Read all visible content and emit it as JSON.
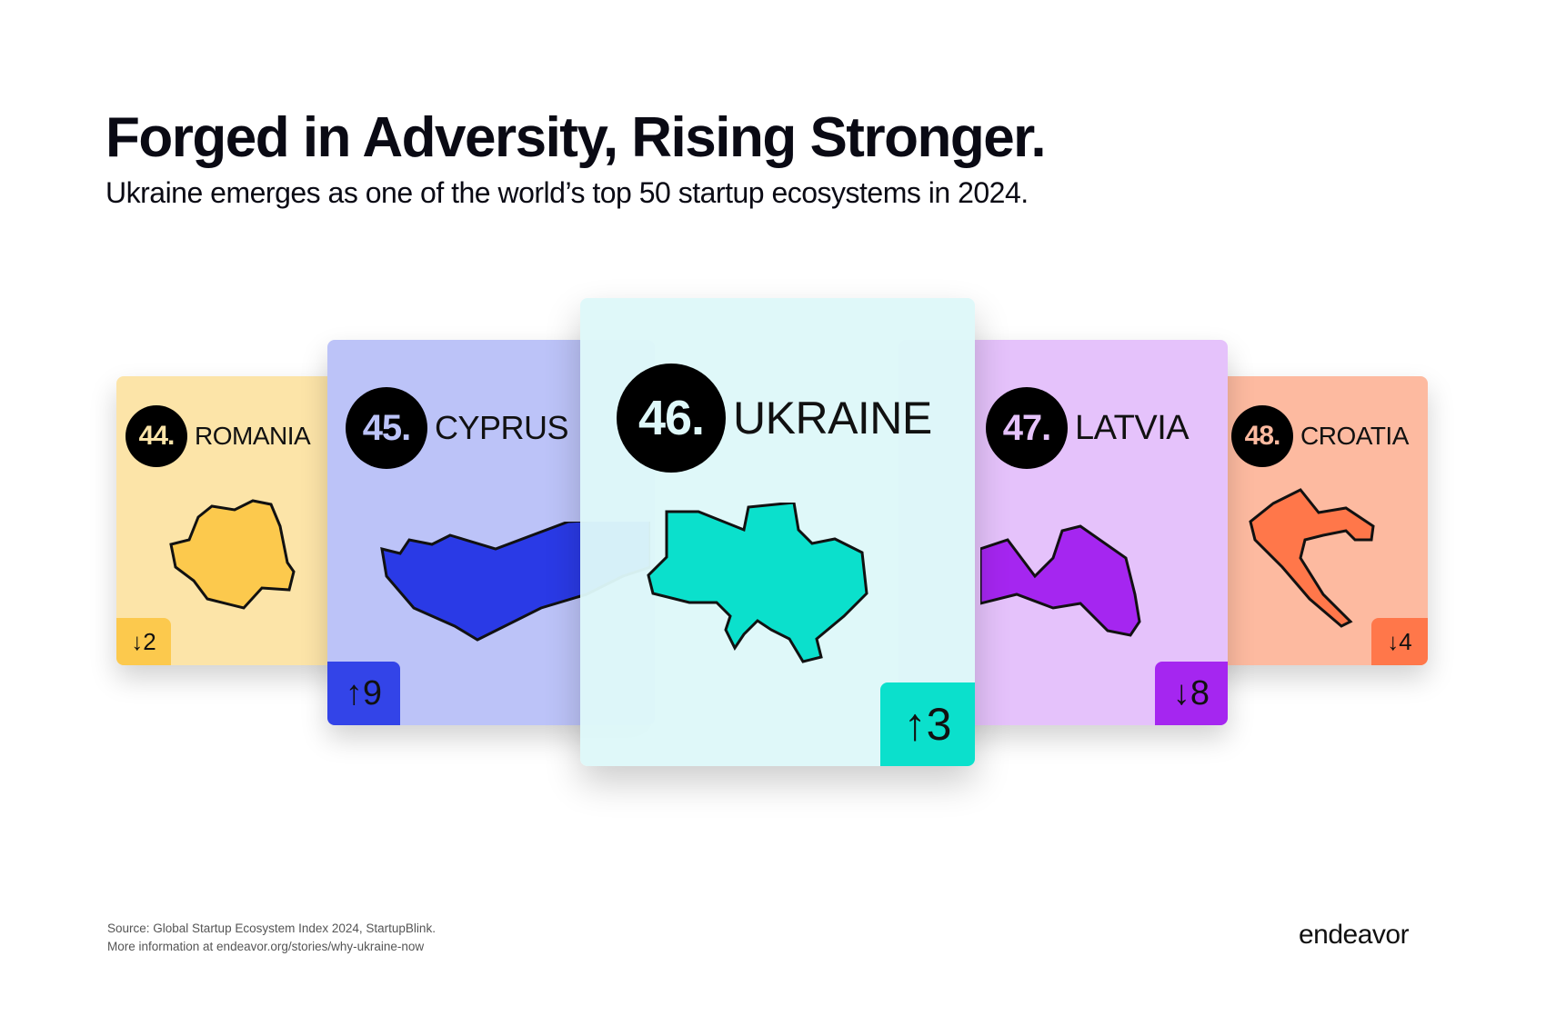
{
  "header": {
    "title": "Forged in Adversity, Rising Stronger.",
    "subtitle": "Ukraine emerges as one of the world’s top 50 startup ecosystems in 2024."
  },
  "cards": [
    {
      "rank": "44.",
      "country": "ROMANIA",
      "change": "↓2",
      "direction": "down",
      "color": "#fcc94d",
      "bg": "#fce4a8"
    },
    {
      "rank": "45.",
      "country": "CYPRUS",
      "change": "↑9",
      "direction": "up",
      "color": "#2a3ae6",
      "bg": "#bcc3f8"
    },
    {
      "rank": "46.",
      "country": "UKRAINE",
      "change": "↑3",
      "direction": "up",
      "color": "#0be0cc",
      "bg": "#def8f9"
    },
    {
      "rank": "47.",
      "country": "LATVIA",
      "change": "↓8",
      "direction": "down",
      "color": "#a526f0",
      "bg": "#e5c2fb"
    },
    {
      "rank": "48.",
      "country": "CROATIA",
      "change": "↓4",
      "direction": "down",
      "color": "#ff774a",
      "bg": "#fdbaa0"
    }
  ],
  "footer": {
    "source": "Source: Global Startup Ecosystem Index 2024, StartupBlink.",
    "more_info": "More information at endeavor.org/stories/why-ukraine-now"
  },
  "logo": "endeavor"
}
